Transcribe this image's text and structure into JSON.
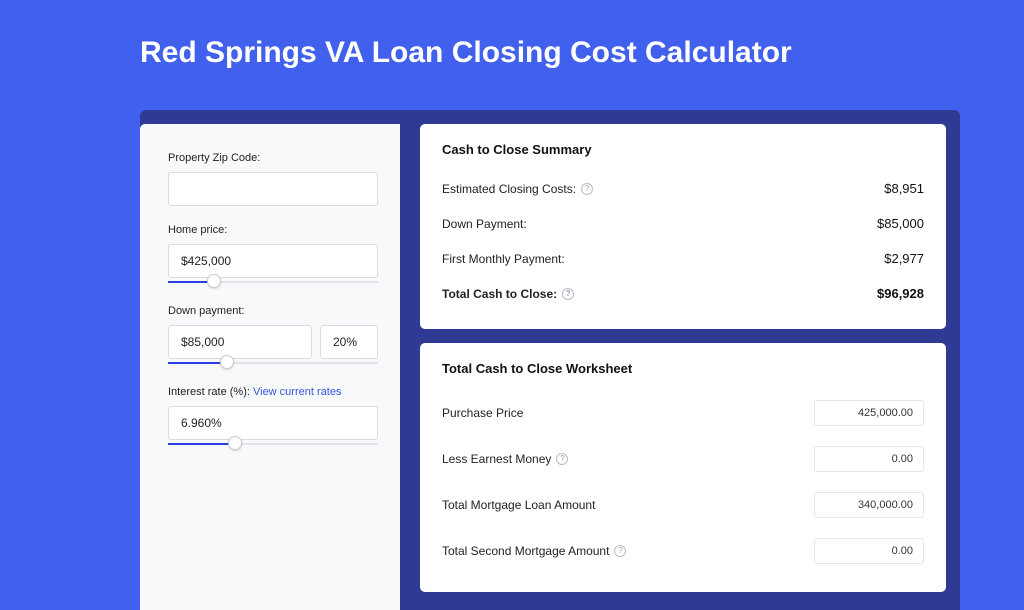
{
  "colors": {
    "page_bg": "#4060ed",
    "header_bar": "#2e3a94",
    "panel_bg": "#f8f9fb",
    "card_bg": "#ffffff",
    "text": "#222222",
    "link": "#3355dd",
    "slider_fill": "#2b3fe0",
    "border": "#d8dbe3"
  },
  "title": "Red Springs VA Loan Closing Cost Calculator",
  "inputs": {
    "zip": {
      "label": "Property Zip Code:",
      "value": ""
    },
    "home_price": {
      "label": "Home price:",
      "value": "$425,000",
      "slider_pct": 22
    },
    "down_payment": {
      "label": "Down payment:",
      "value": "$85,000",
      "pct": "20%",
      "slider_pct": 28
    },
    "interest_rate": {
      "label": "Interest rate (%):",
      "link": "View current rates",
      "value": "6.960%",
      "slider_pct": 32
    }
  },
  "summary": {
    "title": "Cash to Close Summary",
    "rows": [
      {
        "label": "Estimated Closing Costs:",
        "help": true,
        "value": "$8,951",
        "bold": false
      },
      {
        "label": "Down Payment:",
        "help": false,
        "value": "$85,000",
        "bold": false
      },
      {
        "label": "First Monthly Payment:",
        "help": false,
        "value": "$2,977",
        "bold": false
      },
      {
        "label": "Total Cash to Close:",
        "help": true,
        "value": "$96,928",
        "bold": true
      }
    ]
  },
  "worksheet": {
    "title": "Total Cash to Close Worksheet",
    "rows": [
      {
        "label": "Purchase Price",
        "help": false,
        "value": "425,000.00"
      },
      {
        "label": "Less Earnest Money",
        "help": true,
        "value": "0.00"
      },
      {
        "label": "Total Mortgage Loan Amount",
        "help": false,
        "value": "340,000.00"
      },
      {
        "label": "Total Second Mortgage Amount",
        "help": true,
        "value": "0.00"
      }
    ]
  }
}
